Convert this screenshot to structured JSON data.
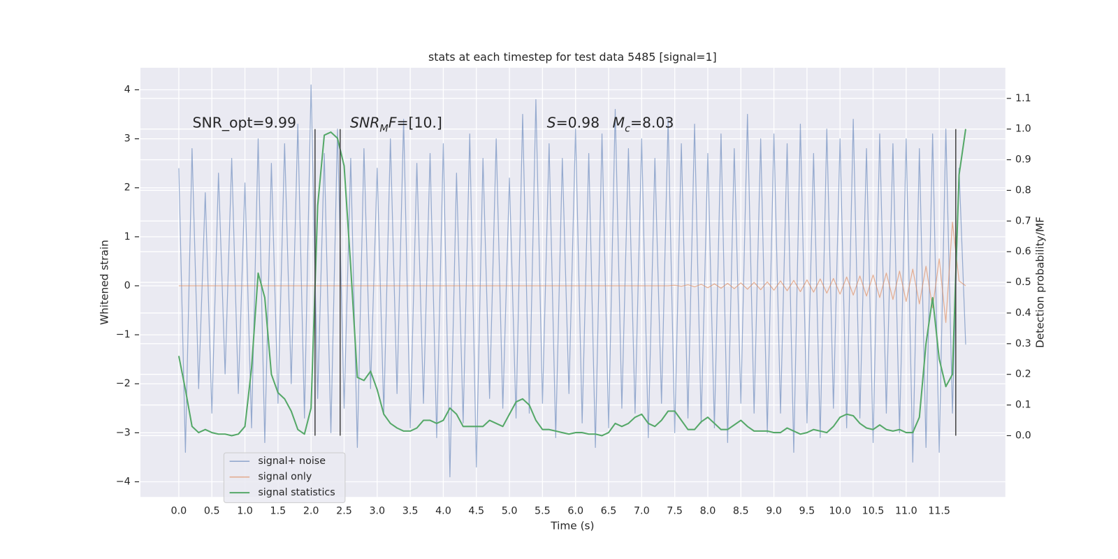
{
  "chart_data": {
    "type": "line",
    "title": "stats at each timestep for test data 5485 [signal=1]",
    "x_label": "Time (s)",
    "y_label": "Whitened strain",
    "y2_label": "Detection probability/MF",
    "grid": true,
    "legend": "lower left",
    "xlim": [
      -0.58,
      12.5
    ],
    "ylim": [
      -4.31,
      4.45
    ],
    "y2lim": [
      -0.2,
      1.2
    ],
    "xticks": [
      {
        "value": 0,
        "label": "0.0"
      },
      0.5,
      {
        "value": 1,
        "label": "1.0"
      },
      1.5,
      {
        "value": 2,
        "label": "2.0"
      },
      2.5,
      {
        "value": 3,
        "label": "3.0"
      },
      3.5,
      {
        "value": 4,
        "label": "4.0"
      },
      4.5,
      {
        "value": 5,
        "label": "5.0"
      },
      5.5,
      {
        "value": 6,
        "label": "6.0"
      },
      6.5,
      {
        "value": 7,
        "label": "7.0"
      },
      7.5,
      {
        "value": 8,
        "label": "8.0"
      },
      8.5,
      {
        "value": 9,
        "label": "9.0"
      },
      9.5,
      {
        "value": 10,
        "label": "10.0"
      },
      10.5,
      {
        "value": 11,
        "label": "11.0"
      },
      11.5
    ],
    "yticks": [
      {
        "value": -4,
        "label": "−4"
      },
      {
        "value": -3,
        "label": "−3"
      },
      {
        "value": -2,
        "label": "−2"
      },
      {
        "value": -1,
        "label": "−1"
      },
      0,
      1,
      2,
      3,
      4
    ],
    "y2ticks": [
      {
        "value": 0,
        "label": "0.0"
      },
      0.1,
      0.2,
      0.3,
      0.4,
      0.5,
      0.6,
      0.7,
      0.8,
      0.9,
      {
        "value": 1,
        "label": "1.0"
      },
      1.1
    ],
    "x": [
      0.0,
      0.1,
      0.2,
      0.3,
      0.4,
      0.5,
      0.6,
      0.7,
      0.8,
      0.9,
      1.0,
      1.1,
      1.2,
      1.3,
      1.4,
      1.5,
      1.6,
      1.7,
      1.8,
      1.9,
      2.0,
      2.1,
      2.2,
      2.3,
      2.4,
      2.5,
      2.6,
      2.7,
      2.8,
      2.9,
      3.0,
      3.1,
      3.2,
      3.3,
      3.4,
      3.5,
      3.6,
      3.7,
      3.8,
      3.9,
      4.0,
      4.1,
      4.2,
      4.3,
      4.4,
      4.5,
      4.6,
      4.7,
      4.8,
      4.9,
      5.0,
      5.1,
      5.2,
      5.3,
      5.4,
      5.5,
      5.6,
      5.7,
      5.8,
      5.9,
      6.0,
      6.1,
      6.2,
      6.3,
      6.4,
      6.5,
      6.6,
      6.7,
      6.8,
      6.9,
      7.0,
      7.1,
      7.2,
      7.3,
      7.4,
      7.5,
      7.6,
      7.7,
      7.8,
      7.9,
      8.0,
      8.1,
      8.2,
      8.3,
      8.4,
      8.5,
      8.6,
      8.7,
      8.8,
      8.9,
      9.0,
      9.1,
      9.2,
      9.3,
      9.4,
      9.5,
      9.6,
      9.7,
      9.8,
      9.9,
      10.0,
      10.1,
      10.2,
      10.3,
      10.4,
      10.5,
      10.6,
      10.7,
      10.8,
      10.9,
      11.0,
      11.1,
      11.2,
      11.3,
      11.4,
      11.5,
      11.6,
      11.7,
      11.8,
      11.9
    ],
    "series": [
      {
        "name": "signal+ noise",
        "color": "#4c72b0",
        "axis": "y",
        "values": [
          2.4,
          -3.4,
          2.8,
          -2.1,
          1.9,
          -2.6,
          2.3,
          -1.8,
          2.6,
          -2.2,
          2.1,
          -2.9,
          3.0,
          -3.2,
          2.5,
          -2.4,
          2.9,
          -2.0,
          3.3,
          -2.7,
          4.1,
          -2.3,
          2.7,
          -3.0,
          3.2,
          -2.5,
          2.6,
          -3.3,
          2.8,
          -2.1,
          2.4,
          -2.6,
          3.0,
          -2.2,
          3.4,
          -2.9,
          2.5,
          -2.4,
          2.7,
          -3.1,
          2.9,
          -3.9,
          2.3,
          -2.8,
          3.1,
          -3.7,
          2.6,
          -2.3,
          3.0,
          -2.5,
          2.2,
          -2.7,
          3.5,
          -2.6,
          3.8,
          -2.4,
          2.9,
          -3.1,
          2.6,
          -2.2,
          3.2,
          -2.8,
          2.7,
          -3.3,
          3.1,
          -2.9,
          3.6,
          -2.5,
          2.8,
          -2.6,
          3.0,
          -3.1,
          2.6,
          -2.4,
          3.4,
          -3.0,
          2.9,
          -2.7,
          3.3,
          -2.8,
          2.7,
          -2.9,
          3.1,
          -3.2,
          2.8,
          -2.4,
          3.5,
          -2.6,
          3.0,
          -3.0,
          3.1,
          -2.6,
          2.9,
          -3.4,
          3.3,
          -2.8,
          2.7,
          -3.1,
          3.2,
          -2.5,
          3.0,
          -2.9,
          3.4,
          -2.7,
          2.8,
          -3.2,
          3.1,
          -2.6,
          2.9,
          -3.0,
          3.0,
          -3.6,
          2.8,
          -3.3,
          3.1,
          -3.4,
          3.2,
          -2.6,
          2.4,
          -1.2
        ]
      },
      {
        "name": "signal only",
        "color": "#dd8452",
        "axis": "y",
        "values": [
          0,
          0,
          0,
          0,
          0,
          0,
          0,
          0,
          0,
          0,
          0,
          0,
          0,
          0,
          0,
          0,
          0,
          0,
          0,
          0,
          0,
          0,
          0,
          0,
          0,
          0,
          0,
          0,
          0,
          0,
          0,
          0,
          0,
          0,
          0,
          0,
          0,
          0,
          0,
          0,
          0,
          0,
          0,
          0,
          0,
          0,
          0,
          0,
          0,
          0,
          0,
          0,
          0,
          0,
          0,
          0,
          0,
          0,
          0,
          0,
          0,
          0,
          0,
          0,
          0,
          0,
          0,
          0,
          0,
          0,
          0,
          0,
          0,
          0,
          0,
          0.01,
          -0.01,
          0.02,
          -0.02,
          0.03,
          -0.04,
          0.04,
          -0.05,
          0.05,
          -0.06,
          0.06,
          -0.07,
          0.07,
          -0.08,
          0.08,
          -0.09,
          0.1,
          -0.1,
          0.11,
          -0.12,
          0.12,
          -0.13,
          0.14,
          -0.15,
          0.15,
          -0.17,
          0.18,
          -0.19,
          0.2,
          -0.21,
          0.22,
          -0.24,
          0.26,
          -0.28,
          0.3,
          -0.32,
          0.34,
          -0.37,
          0.4,
          -0.45,
          0.55,
          -0.75,
          1.3,
          0.1,
          0
        ]
      },
      {
        "name": "signal statistics",
        "color": "#55a868",
        "axis": "y2",
        "values": [
          0.26,
          0.15,
          0.03,
          0.01,
          0.02,
          0.01,
          0.005,
          0.005,
          0.0,
          0.005,
          0.03,
          0.22,
          0.53,
          0.45,
          0.2,
          0.14,
          0.12,
          0.08,
          0.02,
          0.005,
          0.09,
          0.75,
          0.98,
          0.99,
          0.97,
          0.88,
          0.55,
          0.19,
          0.18,
          0.21,
          0.15,
          0.07,
          0.04,
          0.025,
          0.015,
          0.015,
          0.025,
          0.05,
          0.05,
          0.04,
          0.05,
          0.09,
          0.07,
          0.03,
          0.03,
          0.03,
          0.03,
          0.05,
          0.04,
          0.03,
          0.07,
          0.11,
          0.12,
          0.1,
          0.05,
          0.02,
          0.02,
          0.015,
          0.01,
          0.005,
          0.01,
          0.01,
          0.005,
          0.005,
          0.0,
          0.01,
          0.04,
          0.03,
          0.04,
          0.06,
          0.07,
          0.04,
          0.03,
          0.05,
          0.08,
          0.08,
          0.05,
          0.02,
          0.02,
          0.045,
          0.06,
          0.04,
          0.02,
          0.02,
          0.035,
          0.05,
          0.03,
          0.015,
          0.015,
          0.015,
          0.01,
          0.01,
          0.025,
          0.015,
          0.005,
          0.01,
          0.02,
          0.015,
          0.01,
          0.03,
          0.06,
          0.07,
          0.065,
          0.04,
          0.025,
          0.02,
          0.035,
          0.02,
          0.015,
          0.02,
          0.01,
          0.01,
          0.06,
          0.3,
          0.45,
          0.25,
          0.16,
          0.2,
          0.85,
          1.0
        ]
      }
    ],
    "vlines": {
      "x": [
        2.06,
        2.44,
        11.75
      ],
      "ymin": 0,
      "ymax": 1,
      "axis": "y2",
      "color": "#444444"
    },
    "annotations": [
      {
        "segments": [
          {
            "text": "SNR_opt=9.99"
          }
        ]
      },
      {
        "segments": [
          {
            "text": "SNR",
            "style": "italic"
          },
          {
            "text": "M",
            "style": "italic-sub"
          },
          {
            "text": "F",
            "style": "italic"
          },
          {
            "text": "=[10.]"
          }
        ]
      },
      {
        "segments": [
          {
            "text": "S",
            "style": "italic"
          },
          {
            "text": "=0.98"
          }
        ]
      },
      {
        "segments": [
          {
            "text": "M",
            "style": "italic"
          },
          {
            "text": "c",
            "style": "italic-sub"
          },
          {
            "text": "=8.03"
          }
        ]
      }
    ]
  }
}
